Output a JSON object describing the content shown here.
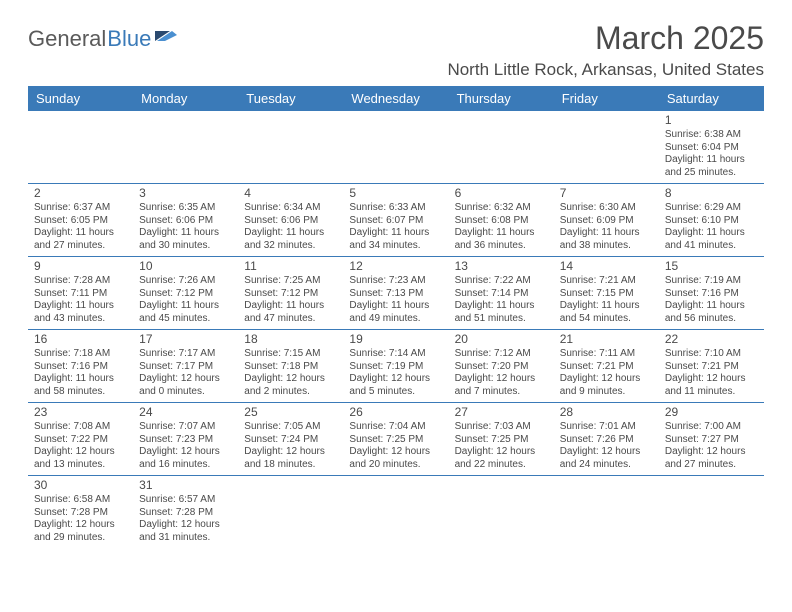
{
  "logo": {
    "general": "General",
    "blue": "Blue"
  },
  "title": "March 2025",
  "location": "North Little Rock, Arkansas, United States",
  "colors": {
    "header_bg": "#3a7ab8",
    "header_text": "#ffffff",
    "cell_border": "#3a7ab8",
    "text": "#4a4a4a",
    "logo_gray": "#5a5a5a",
    "logo_blue": "#3a7ab8",
    "flag_dark": "#2b4a6f",
    "flag_light": "#4a8fd0"
  },
  "day_headers": [
    "Sunday",
    "Monday",
    "Tuesday",
    "Wednesday",
    "Thursday",
    "Friday",
    "Saturday"
  ],
  "weeks": [
    [
      null,
      null,
      null,
      null,
      null,
      null,
      {
        "n": "1",
        "sr": "6:38 AM",
        "ss": "6:04 PM",
        "dl": "11 hours and 25 minutes."
      }
    ],
    [
      {
        "n": "2",
        "sr": "6:37 AM",
        "ss": "6:05 PM",
        "dl": "11 hours and 27 minutes."
      },
      {
        "n": "3",
        "sr": "6:35 AM",
        "ss": "6:06 PM",
        "dl": "11 hours and 30 minutes."
      },
      {
        "n": "4",
        "sr": "6:34 AM",
        "ss": "6:06 PM",
        "dl": "11 hours and 32 minutes."
      },
      {
        "n": "5",
        "sr": "6:33 AM",
        "ss": "6:07 PM",
        "dl": "11 hours and 34 minutes."
      },
      {
        "n": "6",
        "sr": "6:32 AM",
        "ss": "6:08 PM",
        "dl": "11 hours and 36 minutes."
      },
      {
        "n": "7",
        "sr": "6:30 AM",
        "ss": "6:09 PM",
        "dl": "11 hours and 38 minutes."
      },
      {
        "n": "8",
        "sr": "6:29 AM",
        "ss": "6:10 PM",
        "dl": "11 hours and 41 minutes."
      }
    ],
    [
      {
        "n": "9",
        "sr": "7:28 AM",
        "ss": "7:11 PM",
        "dl": "11 hours and 43 minutes."
      },
      {
        "n": "10",
        "sr": "7:26 AM",
        "ss": "7:12 PM",
        "dl": "11 hours and 45 minutes."
      },
      {
        "n": "11",
        "sr": "7:25 AM",
        "ss": "7:12 PM",
        "dl": "11 hours and 47 minutes."
      },
      {
        "n": "12",
        "sr": "7:23 AM",
        "ss": "7:13 PM",
        "dl": "11 hours and 49 minutes."
      },
      {
        "n": "13",
        "sr": "7:22 AM",
        "ss": "7:14 PM",
        "dl": "11 hours and 51 minutes."
      },
      {
        "n": "14",
        "sr": "7:21 AM",
        "ss": "7:15 PM",
        "dl": "11 hours and 54 minutes."
      },
      {
        "n": "15",
        "sr": "7:19 AM",
        "ss": "7:16 PM",
        "dl": "11 hours and 56 minutes."
      }
    ],
    [
      {
        "n": "16",
        "sr": "7:18 AM",
        "ss": "7:16 PM",
        "dl": "11 hours and 58 minutes."
      },
      {
        "n": "17",
        "sr": "7:17 AM",
        "ss": "7:17 PM",
        "dl": "12 hours and 0 minutes."
      },
      {
        "n": "18",
        "sr": "7:15 AM",
        "ss": "7:18 PM",
        "dl": "12 hours and 2 minutes."
      },
      {
        "n": "19",
        "sr": "7:14 AM",
        "ss": "7:19 PM",
        "dl": "12 hours and 5 minutes."
      },
      {
        "n": "20",
        "sr": "7:12 AM",
        "ss": "7:20 PM",
        "dl": "12 hours and 7 minutes."
      },
      {
        "n": "21",
        "sr": "7:11 AM",
        "ss": "7:21 PM",
        "dl": "12 hours and 9 minutes."
      },
      {
        "n": "22",
        "sr": "7:10 AM",
        "ss": "7:21 PM",
        "dl": "12 hours and 11 minutes."
      }
    ],
    [
      {
        "n": "23",
        "sr": "7:08 AM",
        "ss": "7:22 PM",
        "dl": "12 hours and 13 minutes."
      },
      {
        "n": "24",
        "sr": "7:07 AM",
        "ss": "7:23 PM",
        "dl": "12 hours and 16 minutes."
      },
      {
        "n": "25",
        "sr": "7:05 AM",
        "ss": "7:24 PM",
        "dl": "12 hours and 18 minutes."
      },
      {
        "n": "26",
        "sr": "7:04 AM",
        "ss": "7:25 PM",
        "dl": "12 hours and 20 minutes."
      },
      {
        "n": "27",
        "sr": "7:03 AM",
        "ss": "7:25 PM",
        "dl": "12 hours and 22 minutes."
      },
      {
        "n": "28",
        "sr": "7:01 AM",
        "ss": "7:26 PM",
        "dl": "12 hours and 24 minutes."
      },
      {
        "n": "29",
        "sr": "7:00 AM",
        "ss": "7:27 PM",
        "dl": "12 hours and 27 minutes."
      }
    ],
    [
      {
        "n": "30",
        "sr": "6:58 AM",
        "ss": "7:28 PM",
        "dl": "12 hours and 29 minutes."
      },
      {
        "n": "31",
        "sr": "6:57 AM",
        "ss": "7:28 PM",
        "dl": "12 hours and 31 minutes."
      },
      null,
      null,
      null,
      null,
      null
    ]
  ],
  "labels": {
    "sunrise": "Sunrise: ",
    "sunset": "Sunset: ",
    "daylight": "Daylight: "
  }
}
